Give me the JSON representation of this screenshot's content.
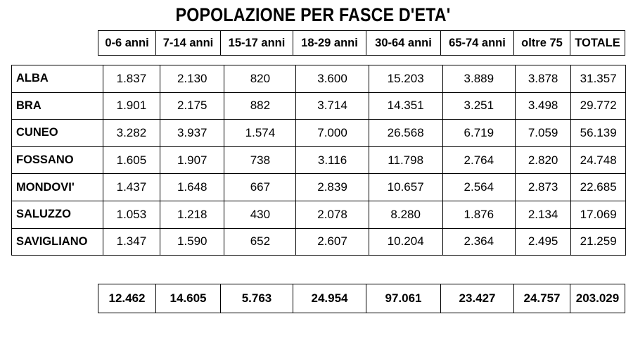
{
  "title": "POPOLAZIONE PER FASCE D'ETA'",
  "chart_data": {
    "type": "table",
    "title": "POPOLAZIONE PER FASCE D'ETA'",
    "columns": [
      "0-6 anni",
      "7-14 anni",
      "15-17 anni",
      "18-29 anni",
      "30-64 anni",
      "65-74 anni",
      "oltre 75",
      "TOTALE"
    ],
    "rows": [
      {
        "label": "ALBA",
        "values": [
          "1.837",
          "2.130",
          "820",
          "3.600",
          "15.203",
          "3.889",
          "3.878",
          "31.357"
        ]
      },
      {
        "label": "BRA",
        "values": [
          "1.901",
          "2.175",
          "882",
          "3.714",
          "14.351",
          "3.251",
          "3.498",
          "29.772"
        ]
      },
      {
        "label": "CUNEO",
        "values": [
          "3.282",
          "3.937",
          "1.574",
          "7.000",
          "26.568",
          "6.719",
          "7.059",
          "56.139"
        ]
      },
      {
        "label": "FOSSANO",
        "values": [
          "1.605",
          "1.907",
          "738",
          "3.116",
          "11.798",
          "2.764",
          "2.820",
          "24.748"
        ]
      },
      {
        "label": "MONDOVI'",
        "values": [
          "1.437",
          "1.648",
          "667",
          "2.839",
          "10.657",
          "2.564",
          "2.873",
          "22.685"
        ]
      },
      {
        "label": "SALUZZO",
        "values": [
          "1.053",
          "1.218",
          "430",
          "2.078",
          "8.280",
          "1.876",
          "2.134",
          "17.069"
        ]
      },
      {
        "label": "SAVIGLIANO",
        "values": [
          "1.347",
          "1.590",
          "652",
          "2.607",
          "10.204",
          "2.364",
          "2.495",
          "21.259"
        ]
      }
    ],
    "totals": [
      "12.462",
      "14.605",
      "5.763",
      "24.954",
      "97.061",
      "23.427",
      "24.757",
      "203.029"
    ]
  }
}
